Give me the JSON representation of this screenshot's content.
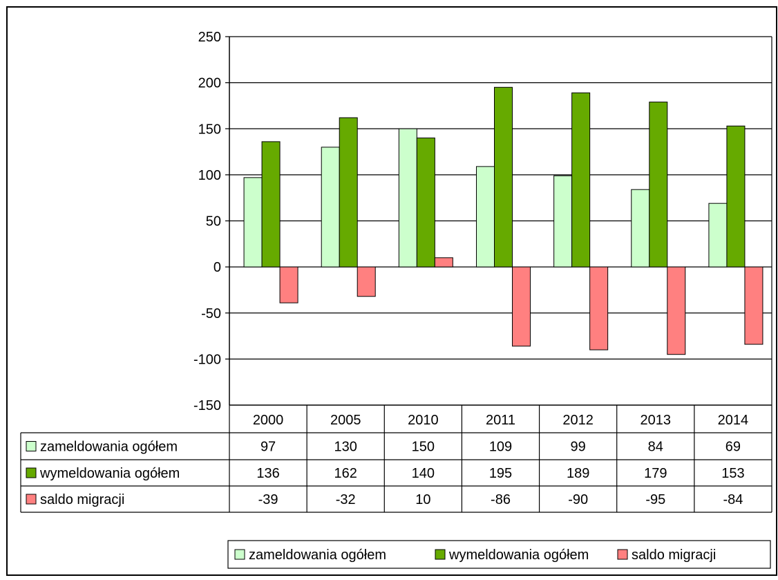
{
  "chart_data": {
    "type": "bar",
    "categories": [
      "2000",
      "2005",
      "2010",
      "2011",
      "2012",
      "2013",
      "2014"
    ],
    "series": [
      {
        "name": "zameldowania ogółem",
        "values": [
          97,
          130,
          150,
          109,
          99,
          84,
          69
        ],
        "color": "#ccffcc"
      },
      {
        "name": "wymeldowania ogółem",
        "values": [
          136,
          162,
          140,
          195,
          189,
          179,
          153
        ],
        "color": "#66aa00"
      },
      {
        "name": "saldo migracji",
        "values": [
          -39,
          -32,
          10,
          -86,
          -90,
          -95,
          -84
        ],
        "color": "#ff8080"
      }
    ],
    "ylim": [
      -150,
      250
    ],
    "yticks": [
      "250",
      "200",
      "150",
      "100",
      "50",
      "0",
      "-50",
      "-100",
      "-150"
    ],
    "grid": true,
    "data_table": true,
    "legend_position": "bottom-right"
  }
}
